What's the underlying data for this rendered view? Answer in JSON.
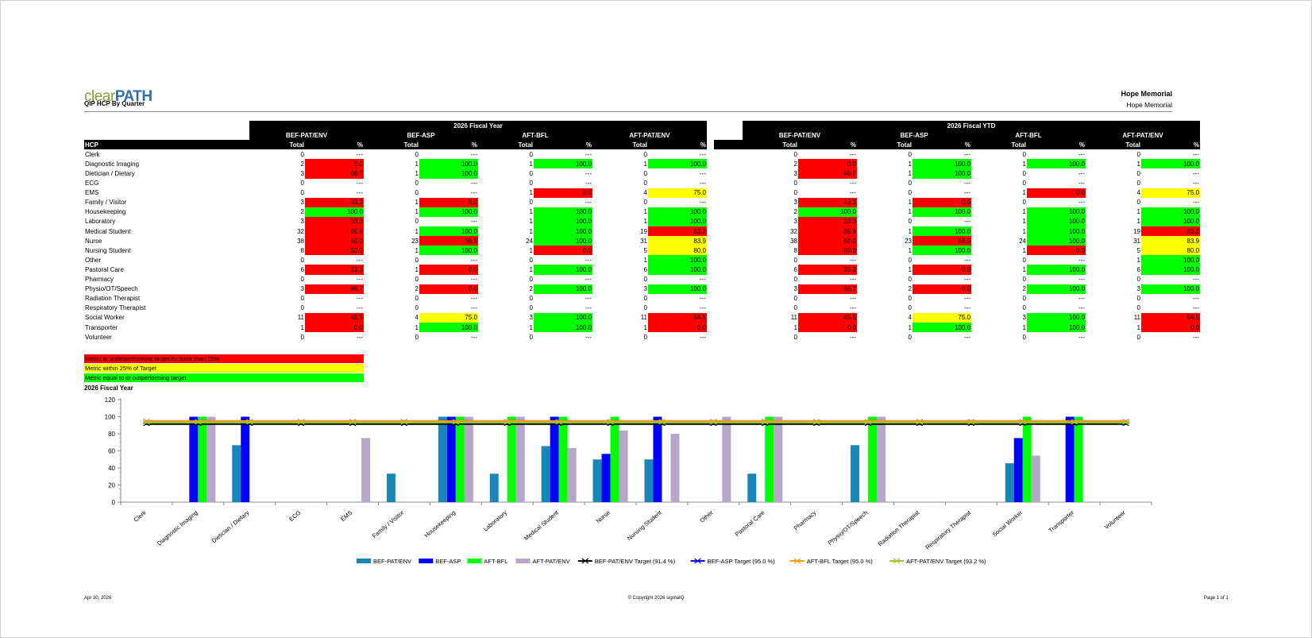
{
  "header": {
    "logo_part1": "clear",
    "logo_part2": "PATH",
    "report_title": "QIP HCP By Quarter",
    "org_name": "Hope Memorial",
    "org_sub": "Hope Memorial"
  },
  "table": {
    "group1_title": "2026 Fiscal Year",
    "group2_title": "2026 Fiscal YTD",
    "metrics": [
      "BEF-PAT/ENV",
      "BEF-ASP",
      "AFT-BFL",
      "AFT-PAT/ENV"
    ],
    "row_header": "HCP",
    "col_total": "Total",
    "col_pct": "%",
    "rows": [
      {
        "hcp": "Clerk",
        "c": [
          [
            "0",
            "---",
            ""
          ],
          [
            "0",
            "---",
            ""
          ],
          [
            "0",
            "---",
            ""
          ],
          [
            "0",
            "---",
            ""
          ]
        ]
      },
      {
        "hcp": "Diagnostic Imaging",
        "c": [
          [
            "2",
            "0.0",
            "red"
          ],
          [
            "1",
            "100.0",
            "grn"
          ],
          [
            "1",
            "100.0",
            "grn"
          ],
          [
            "1",
            "100.0",
            "grn"
          ]
        ]
      },
      {
        "hcp": "Dietician / Dietary",
        "c": [
          [
            "3",
            "66.7",
            "red"
          ],
          [
            "1",
            "100.0",
            "grn"
          ],
          [
            "0",
            "---",
            ""
          ],
          [
            "0",
            "---",
            ""
          ]
        ]
      },
      {
        "hcp": "ECG",
        "c": [
          [
            "0",
            "---",
            ""
          ],
          [
            "0",
            "---",
            ""
          ],
          [
            "0",
            "---",
            ""
          ],
          [
            "0",
            "---",
            ""
          ]
        ]
      },
      {
        "hcp": "EMS",
        "c": [
          [
            "0",
            "---",
            ""
          ],
          [
            "0",
            "---",
            ""
          ],
          [
            "1",
            "0.0",
            "red"
          ],
          [
            "4",
            "75.0",
            "yel"
          ]
        ]
      },
      {
        "hcp": "Family / Visitor",
        "c": [
          [
            "3",
            "33.3",
            "red"
          ],
          [
            "1",
            "0.0",
            "red"
          ],
          [
            "0",
            "---",
            ""
          ],
          [
            "0",
            "---",
            ""
          ]
        ]
      },
      {
        "hcp": "Housekeeping",
        "c": [
          [
            "2",
            "100.0",
            "grn"
          ],
          [
            "1",
            "100.0",
            "grn"
          ],
          [
            "1",
            "100.0",
            "grn"
          ],
          [
            "1",
            "100.0",
            "grn"
          ]
        ]
      },
      {
        "hcp": "Laboratory",
        "c": [
          [
            "3",
            "33.3",
            "red"
          ],
          [
            "0",
            "---",
            ""
          ],
          [
            "1",
            "100.0",
            "grn"
          ],
          [
            "1",
            "100.0",
            "grn"
          ]
        ]
      },
      {
        "hcp": "Medical Student",
        "c": [
          [
            "32",
            "65.6",
            "red"
          ],
          [
            "1",
            "100.0",
            "grn"
          ],
          [
            "1",
            "100.0",
            "grn"
          ],
          [
            "19",
            "63.2",
            "red"
          ]
        ]
      },
      {
        "hcp": "Nurse",
        "c": [
          [
            "38",
            "50.0",
            "red"
          ],
          [
            "23",
            "56.5",
            "red"
          ],
          [
            "24",
            "100.0",
            "grn"
          ],
          [
            "31",
            "83.9",
            "yel"
          ]
        ]
      },
      {
        "hcp": "Nursing Student",
        "c": [
          [
            "8",
            "50.0",
            "red"
          ],
          [
            "1",
            "100.0",
            "grn"
          ],
          [
            "1",
            "0.0",
            "red"
          ],
          [
            "5",
            "80.0",
            "yel"
          ]
        ]
      },
      {
        "hcp": "Other",
        "c": [
          [
            "0",
            "---",
            ""
          ],
          [
            "0",
            "---",
            ""
          ],
          [
            "0",
            "---",
            ""
          ],
          [
            "1",
            "100.0",
            "grn"
          ]
        ]
      },
      {
        "hcp": "Pastoral Care",
        "c": [
          [
            "6",
            "33.3",
            "red"
          ],
          [
            "1",
            "0.0",
            "red"
          ],
          [
            "1",
            "100.0",
            "grn"
          ],
          [
            "6",
            "100.0",
            "grn"
          ]
        ]
      },
      {
        "hcp": "Pharmacy",
        "c": [
          [
            "0",
            "---",
            ""
          ],
          [
            "0",
            "---",
            ""
          ],
          [
            "0",
            "---",
            ""
          ],
          [
            "0",
            "---",
            ""
          ]
        ]
      },
      {
        "hcp": "Physio/OT/Speech",
        "c": [
          [
            "3",
            "66.7",
            "red"
          ],
          [
            "2",
            "0.0",
            "red"
          ],
          [
            "2",
            "100.0",
            "grn"
          ],
          [
            "3",
            "100.0",
            "grn"
          ]
        ]
      },
      {
        "hcp": "Radiation Therapist",
        "c": [
          [
            "0",
            "---",
            ""
          ],
          [
            "0",
            "---",
            ""
          ],
          [
            "0",
            "---",
            ""
          ],
          [
            "0",
            "---",
            ""
          ]
        ]
      },
      {
        "hcp": "Respiratory Therapist",
        "c": [
          [
            "0",
            "---",
            ""
          ],
          [
            "0",
            "---",
            ""
          ],
          [
            "0",
            "---",
            ""
          ],
          [
            "0",
            "---",
            ""
          ]
        ]
      },
      {
        "hcp": "Social Worker",
        "c": [
          [
            "11",
            "45.5",
            "red"
          ],
          [
            "4",
            "75.0",
            "yel"
          ],
          [
            "3",
            "100.0",
            "grn"
          ],
          [
            "11",
            "54.5",
            "red"
          ]
        ]
      },
      {
        "hcp": "Transporter",
        "c": [
          [
            "1",
            "0.0",
            "red"
          ],
          [
            "1",
            "100.0",
            "grn"
          ],
          [
            "1",
            "100.0",
            "grn"
          ],
          [
            "1",
            "0.0",
            "red"
          ]
        ]
      },
      {
        "hcp": "Volunteer",
        "c": [
          [
            "0",
            "---",
            ""
          ],
          [
            "0",
            "---",
            ""
          ],
          [
            "0",
            "---",
            ""
          ],
          [
            "0",
            "---",
            ""
          ]
        ]
      }
    ]
  },
  "legend": {
    "red": "Metric is underperforming target by more than 25%",
    "yellow": "Metric within 25% of Target",
    "green": "Metric equal to or outperforming target"
  },
  "colors": {
    "red": "#ff0000",
    "yellow": "#ffff00",
    "green": "#00ff00",
    "series": [
      "#1a86b8",
      "#0000ff",
      "#00ff00",
      "#b6a6ca"
    ],
    "targets": [
      "#000000",
      "#0000ff",
      "#ff9900",
      "#99cc33"
    ]
  },
  "chart_data": {
    "type": "bar",
    "title": "2026 Fiscal Year",
    "ylim": [
      0,
      120
    ],
    "yticks": [
      0,
      20,
      40,
      60,
      80,
      100,
      120
    ],
    "categories": [
      "Clerk",
      "Diagnostic Imaging",
      "Dietician / Dietary",
      "ECG",
      "EMS",
      "Family / Visitor",
      "Housekeeping",
      "Laboratory",
      "Medical Student",
      "Nurse",
      "Nursing Student",
      "Other",
      "Pastoral Care",
      "Pharmacy",
      "Physio/OT/Speech",
      "Radiation Therapist",
      "Respiratory Therapist",
      "Social Worker",
      "Transporter",
      "Volunteer"
    ],
    "series": [
      {
        "name": "BEF-PAT/ENV",
        "values": [
          null,
          0,
          66.7,
          null,
          null,
          33.3,
          100,
          33.3,
          65.6,
          50,
          50,
          null,
          33.3,
          null,
          66.7,
          null,
          null,
          45.5,
          0,
          null
        ]
      },
      {
        "name": "BEF-ASP",
        "values": [
          null,
          100,
          100,
          null,
          null,
          0,
          100,
          null,
          100,
          56.5,
          100,
          null,
          0,
          null,
          0,
          null,
          null,
          75,
          100,
          null
        ]
      },
      {
        "name": "AFT-BFL",
        "values": [
          null,
          100,
          null,
          null,
          0,
          null,
          100,
          100,
          100,
          100,
          0,
          null,
          100,
          null,
          100,
          null,
          null,
          100,
          100,
          null
        ]
      },
      {
        "name": "AFT-PAT/ENV",
        "values": [
          null,
          100,
          null,
          null,
          75,
          null,
          100,
          100,
          63.2,
          83.9,
          80,
          100,
          100,
          null,
          100,
          null,
          null,
          54.5,
          0,
          null
        ]
      }
    ],
    "targets": [
      {
        "name": "BEF-PAT/ENV Target (91.4 %)",
        "value": 91.4
      },
      {
        "name": "BEF-ASP Target (95.0 %)",
        "value": 95.0
      },
      {
        "name": "AFT-BFL Target (95.0 %)",
        "value": 95.0
      },
      {
        "name": "AFT-PAT/ENV Target (93.2 %)",
        "value": 93.2
      }
    ],
    "legend_position": "bottom"
  },
  "footer": {
    "date": "Apr 30, 2026",
    "copyright": "© Copyright 2026 sigmaIQ",
    "page": "Page 1 of 1"
  }
}
